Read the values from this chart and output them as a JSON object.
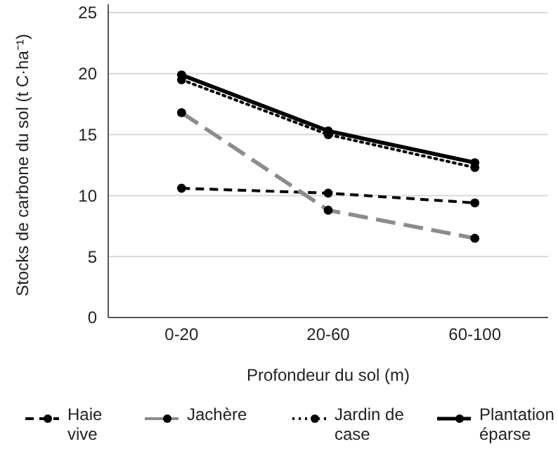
{
  "chart_data": {
    "type": "line",
    "xlabel": "Profondeur du sol (m)",
    "ylabel": "Stocks de carbone du sol (t C·ha⁻¹)",
    "categories": [
      "0-20",
      "20-60",
      "60-100"
    ],
    "ylim": [
      0,
      25
    ],
    "yticks": [
      0,
      5,
      10,
      15,
      20,
      25
    ],
    "grid": "y",
    "legend": "bottom",
    "marker": "circle",
    "series": [
      {
        "name": "Haie vive",
        "color": "#000000",
        "line_style": "dashed",
        "values": [
          10.6,
          10.2,
          9.4
        ]
      },
      {
        "name": "Jachère",
        "color": "#8c8c8c",
        "line_style": "long-dashed",
        "values": [
          16.8,
          8.8,
          6.5
        ]
      },
      {
        "name": "Jardin de case",
        "color": "#000000",
        "line_style": "dotted",
        "values": [
          19.5,
          15.0,
          12.3
        ]
      },
      {
        "name": "Plantation éparse",
        "color": "#000000",
        "line_style": "solid",
        "values": [
          19.9,
          15.3,
          12.7
        ]
      }
    ]
  }
}
